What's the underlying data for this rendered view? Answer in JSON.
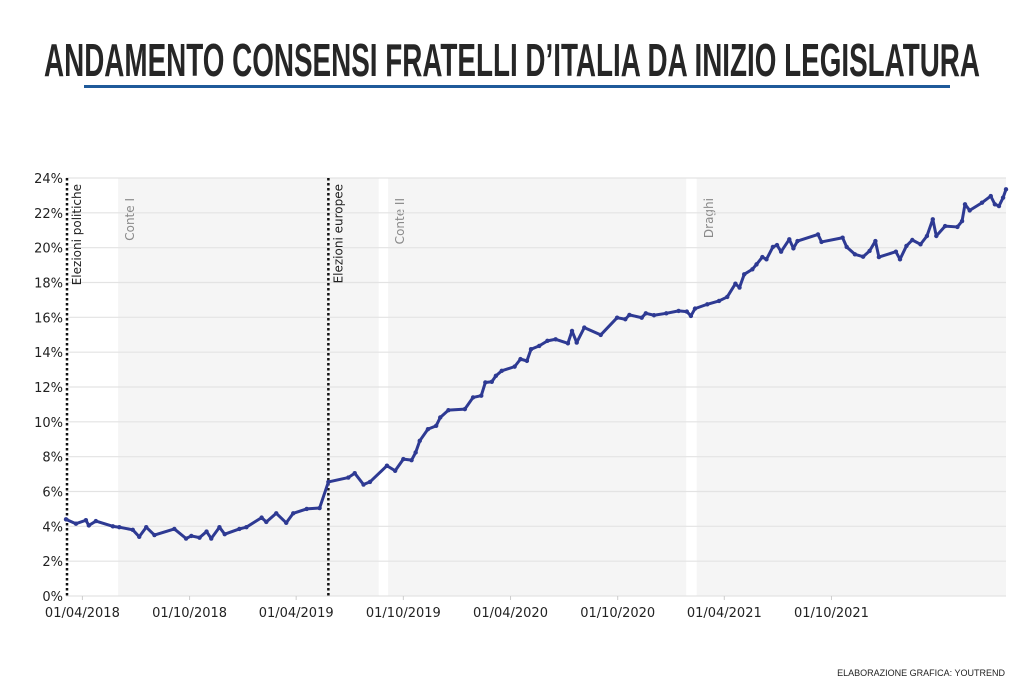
{
  "title": "ANDAMENTO CONSENSI FRATELLI D’ITALIA DA INIZIO LEGISLATURA",
  "credit": "ELABORAZIONE GRAFICA: YOUTREND",
  "colors": {
    "line": "#2e3a93",
    "title": "#262626",
    "underline": "#1f5a9a",
    "shade": "#f5f5f5",
    "grid": "#e3e3e3"
  },
  "chart_data": {
    "type": "line",
    "title": "",
    "xlabel": "",
    "ylabel": "",
    "xlim": [
      "2018-03-04",
      "2022-07-26"
    ],
    "ylim": [
      0,
      24
    ],
    "grid": true,
    "y_ticks": [
      "0%",
      "2%",
      "4%",
      "6%",
      "8%",
      "10%",
      "12%",
      "14%",
      "16%",
      "18%",
      "20%",
      "22%",
      "24%"
    ],
    "x_ticks": [
      {
        "date": "2018-04-01",
        "label": "01/04/2018"
      },
      {
        "date": "2018-10-01",
        "label": "01/10/2018"
      },
      {
        "date": "2019-04-01",
        "label": "01/04/2019"
      },
      {
        "date": "2019-10-01",
        "label": "01/10/2019"
      },
      {
        "date": "2020-04-01",
        "label": "01/04/2020"
      },
      {
        "date": "2020-10-01",
        "label": "01/10/2020"
      },
      {
        "date": "2021-04-01",
        "label": "01/04/2021"
      },
      {
        "date": "2021-10-01",
        "label": "01/10/2021"
      }
    ],
    "events": [
      {
        "date": "2018-03-04",
        "label": "Elezioni politiche"
      },
      {
        "date": "2019-05-26",
        "label": "Elezioni europee"
      }
    ],
    "governments": [
      {
        "label": "Conte I",
        "start": "2018-06-01",
        "end": "2019-08-20"
      },
      {
        "label": "Conte II",
        "start": "2019-09-05",
        "end": "2021-01-26"
      },
      {
        "label": "Draghi",
        "start": "2021-02-13",
        "end": "2022-07-26"
      }
    ],
    "series": [
      {
        "x": [
          "2018-03-04",
          "2018-03-21",
          "2018-04-07",
          "2018-04-12",
          "2018-04-24",
          "2018-05-23",
          "2018-06-03",
          "2018-06-26",
          "2018-07-07",
          "2018-07-19",
          "2018-08-02",
          "2018-09-05",
          "2018-09-25",
          "2018-10-04",
          "2018-10-18",
          "2018-10-30",
          "2018-11-07",
          "2018-11-21",
          "2018-11-30",
          "2018-12-25",
          "2019-01-06",
          "2019-02-01",
          "2019-02-09",
          "2019-02-26",
          "2019-03-15",
          "2019-03-27",
          "2019-04-19",
          "2019-05-11",
          "2019-05-26",
          "2019-06-29",
          "2019-07-10",
          "2019-07-25",
          "2019-08-05",
          "2019-09-03",
          "2019-09-17",
          "2019-10-01",
          "2019-10-15",
          "2019-10-22",
          "2019-10-29",
          "2019-11-12",
          "2019-11-26",
          "2019-12-03",
          "2019-12-17",
          "2020-01-14",
          "2020-01-28",
          "2020-02-11",
          "2020-02-18",
          "2020-02-29",
          "2020-03-07",
          "2020-03-17",
          "2020-04-08",
          "2020-04-18",
          "2020-04-29",
          "2020-05-06",
          "2020-05-20",
          "2020-06-03",
          "2020-06-17",
          "2020-07-08",
          "2020-07-15",
          "2020-07-23",
          "2020-08-05",
          "2020-09-02",
          "2020-09-30",
          "2020-10-14",
          "2020-10-21",
          "2020-11-11",
          "2020-11-18",
          "2020-12-02",
          "2020-12-23",
          "2021-01-13",
          "2021-01-27",
          "2021-02-03",
          "2021-02-10",
          "2021-03-03",
          "2021-03-23",
          "2021-04-06",
          "2021-04-20",
          "2021-04-27",
          "2021-05-05",
          "2021-05-19",
          "2021-05-26",
          "2021-06-05",
          "2021-06-12",
          "2021-06-23",
          "2021-06-30",
          "2021-07-07",
          "2021-07-21",
          "2021-07-28",
          "2021-08-04",
          "2021-09-08",
          "2021-09-14",
          "2021-10-20",
          "2021-10-27",
          "2021-11-10",
          "2021-11-24",
          "2021-12-05",
          "2021-12-15",
          "2021-12-21",
          "2022-01-19",
          "2022-01-26",
          "2022-02-06",
          "2022-02-16",
          "2022-03-02",
          "2022-03-13",
          "2022-03-23",
          "2022-03-29",
          "2022-04-13",
          "2022-05-04",
          "2022-05-12",
          "2022-05-17",
          "2022-05-25",
          "2022-06-15",
          "2022-06-30",
          "2022-07-07",
          "2022-07-14",
          "2022-07-21",
          "2022-07-26"
        ],
        "y": [
          4.4,
          4.15,
          4.35,
          4.05,
          4.3,
          4.0,
          3.95,
          3.8,
          3.4,
          3.95,
          3.5,
          3.85,
          3.3,
          3.45,
          3.35,
          3.7,
          3.3,
          3.95,
          3.55,
          3.85,
          3.95,
          4.5,
          4.25,
          4.75,
          4.2,
          4.75,
          5.0,
          5.05,
          6.55,
          6.8,
          7.05,
          6.4,
          6.55,
          7.48,
          7.19,
          7.86,
          7.8,
          8.24,
          8.91,
          9.58,
          9.77,
          10.25,
          10.67,
          10.73,
          11.4,
          11.5,
          12.26,
          12.3,
          12.64,
          12.93,
          13.17,
          13.6,
          13.5,
          14.17,
          14.36,
          14.65,
          14.74,
          14.51,
          15.22,
          14.55,
          15.41,
          14.99,
          15.98,
          15.89,
          16.14,
          15.98,
          16.23,
          16.12,
          16.23,
          16.37,
          16.33,
          16.08,
          16.5,
          16.75,
          16.94,
          17.17,
          17.93,
          17.71,
          18.47,
          18.76,
          19.04,
          19.46,
          19.33,
          20.04,
          20.15,
          19.77,
          20.48,
          19.96,
          20.38,
          20.76,
          20.33,
          20.57,
          20.04,
          19.62,
          19.48,
          19.81,
          20.38,
          19.46,
          19.77,
          19.33,
          20.1,
          20.44,
          20.19,
          20.67,
          21.63,
          20.67,
          21.24,
          21.19,
          21.53,
          22.49,
          22.14,
          22.58,
          22.96,
          22.49,
          22.39,
          22.87,
          23.35
        ]
      }
    ]
  }
}
